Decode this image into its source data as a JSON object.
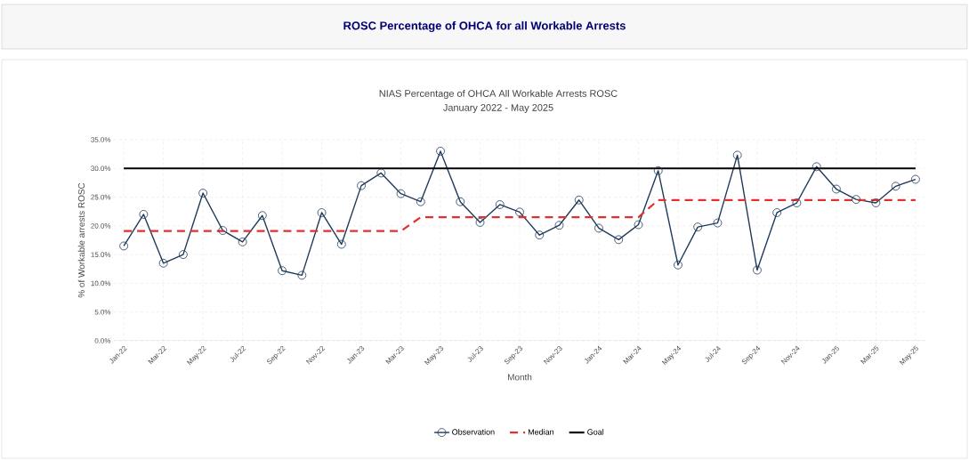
{
  "chart_data": {
    "type": "line",
    "title": "ROSC Percentage of OHCA for all Workable Arrests",
    "subtitle": "NIAS Percentage of OHCA All Workable Arrests ROSC",
    "annotations": [
      "January 2022 - May 2025"
    ],
    "xlabel": "Month",
    "ylabel": "% of Workable arrests ROSC",
    "categories": [
      "Jan-22",
      null,
      "Mar-22",
      null,
      "May-22",
      null,
      "Jul-22",
      null,
      "Sep-22",
      null,
      "Nov-22",
      null,
      "Jan-23",
      null,
      "Mar-23",
      null,
      "May-23",
      null,
      "Jul-23",
      null,
      "Sep-23",
      null,
      "Nov-23",
      null,
      "Jan-24",
      null,
      "Mar-24",
      null,
      "May-24",
      null,
      "Jul-24",
      null,
      "Sep-24",
      null,
      "Nov-24",
      null,
      "Jan-25",
      null,
      "Mar-25",
      null,
      "May-25"
    ],
    "series": [
      {
        "name": "Observation",
        "color": "#1f3a5a",
        "marker": "circle",
        "line_style": "solid",
        "values": [
          16.5,
          22,
          13.5,
          15,
          25.7,
          19.2,
          17.2,
          21.8,
          12.2,
          11.4,
          22.3,
          16.8,
          27,
          29.2,
          25.6,
          24.2,
          33,
          24.2,
          20.6,
          23.7,
          22.4,
          18.4,
          20.1,
          24.5,
          19.6,
          17.6,
          20.2,
          29.6,
          13.2,
          19.8,
          20.5,
          32.3,
          12.3,
          22.3,
          24,
          30.3,
          26.4,
          24.6,
          24,
          26.9,
          28.1
        ]
      },
      {
        "name": "Median",
        "color": "#e03030",
        "marker": "none",
        "line_style": "dashed",
        "values": [
          19.1,
          19.1,
          19.1,
          19.1,
          19.1,
          19.1,
          19.1,
          19.1,
          19.1,
          19.1,
          19.1,
          19.1,
          19.1,
          19.1,
          19.1,
          21.5,
          21.5,
          21.5,
          21.5,
          21.5,
          21.5,
          21.5,
          21.5,
          21.5,
          21.5,
          21.5,
          21.5,
          24.5,
          24.5,
          24.5,
          24.5,
          24.5,
          24.5,
          24.5,
          24.5,
          24.5,
          24.5,
          24.5,
          24.5,
          24.5,
          24.5
        ]
      },
      {
        "name": "Goal",
        "color": "#000000",
        "marker": "none",
        "line_style": "solid",
        "values": [
          30,
          30,
          30,
          30,
          30,
          30,
          30,
          30,
          30,
          30,
          30,
          30,
          30,
          30,
          30,
          30,
          30,
          30,
          30,
          30,
          30,
          30,
          30,
          30,
          30,
          30,
          30,
          30,
          30,
          30,
          30,
          30,
          30,
          30,
          30,
          30,
          30,
          30,
          30,
          30,
          30
        ]
      }
    ],
    "ylim": [
      0,
      35
    ],
    "yticks": [
      {
        "value": 0,
        "label": "0.0%"
      },
      {
        "value": 5,
        "label": "5.0%"
      },
      {
        "value": 10,
        "label": "10.0%"
      },
      {
        "value": 15,
        "label": "15.0%"
      },
      {
        "value": 20,
        "label": "20.0%"
      },
      {
        "value": 25,
        "label": "25.0%"
      },
      {
        "value": 30,
        "label": "30.0%"
      },
      {
        "value": 35,
        "label": "35.0%"
      }
    ],
    "grid": true,
    "legend": "bottom"
  }
}
